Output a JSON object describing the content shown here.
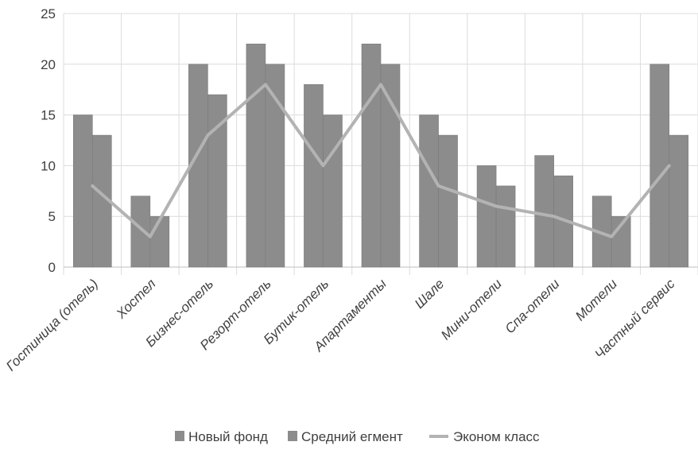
{
  "chart_data": {
    "type": "bar",
    "categories": [
      "Гостиница (отель)",
      "Хостел",
      "Бизнес-отель",
      "Резорт-отель",
      "Бутик-отель",
      "Апартаменты",
      "Шале",
      "Мини-отели",
      "Спа-отели",
      "Мотели",
      "Частный сервис"
    ],
    "series": [
      {
        "name": "Новый фонд",
        "kind": "bar",
        "color": "#8c8c8c",
        "values": [
          15,
          7,
          20,
          22,
          18,
          22,
          15,
          10,
          11,
          7,
          20
        ]
      },
      {
        "name": "Средний  егмент",
        "kind": "bar",
        "color": "#8c8c8c",
        "values": [
          13,
          5,
          17,
          20,
          15,
          20,
          13,
          8,
          9,
          5,
          13
        ]
      },
      {
        "name": "Эконом класс",
        "kind": "line",
        "color": "#b3b3b3",
        "values": [
          8,
          3,
          13,
          18,
          10,
          18,
          8,
          6,
          5,
          3,
          10
        ]
      }
    ],
    "ylim": [
      0,
      25
    ],
    "yticks": [
      "0",
      "5",
      "10",
      "15",
      "20",
      "25"
    ],
    "grid": true,
    "legend_position": "bottom"
  }
}
